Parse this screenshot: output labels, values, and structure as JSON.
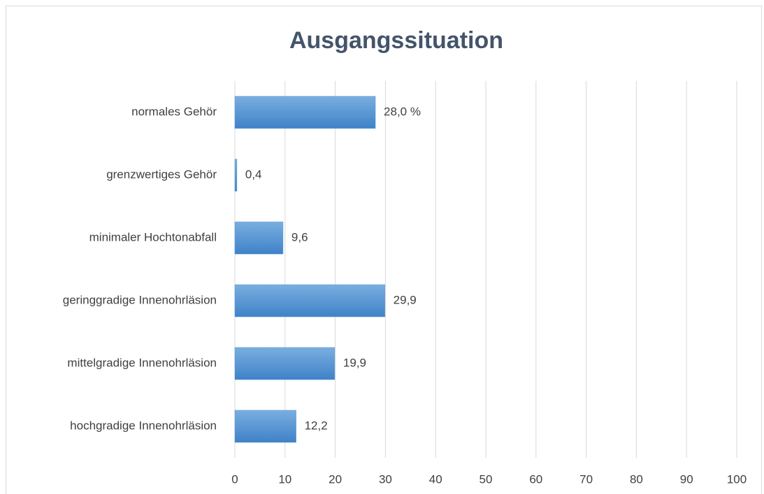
{
  "chart_data": {
    "type": "bar",
    "orientation": "horizontal",
    "title": "Ausgangssituation",
    "categories": [
      "normales Gehör",
      "grenzwertiges Gehör",
      "minimaler Hochtonabfall",
      "geringgradige Innenohrläsion",
      "mittelgradige Innenohrläsion",
      "hochgradige Innenohrläsion"
    ],
    "values": [
      28.0,
      0.4,
      9.6,
      29.9,
      19.9,
      12.2
    ],
    "value_labels": [
      "28,0 %",
      "0,4",
      "9,6",
      "29,9",
      "19,9",
      "12,2"
    ],
    "color": "#5b9bd5",
    "xlim": [
      0,
      100
    ],
    "xticks": [
      0,
      10,
      20,
      30,
      40,
      50,
      60,
      70,
      80,
      90,
      100
    ],
    "grid": true
  }
}
